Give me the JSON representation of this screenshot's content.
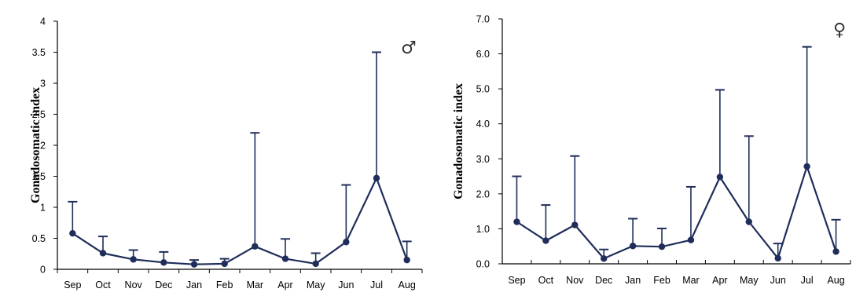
{
  "chart_data": [
    {
      "type": "line",
      "title": "",
      "symbol": "♂",
      "xlabel": "",
      "ylabel": "Gonadosomatic index",
      "categories": [
        "Sep",
        "Oct",
        "Nov",
        "Dec",
        "Jan",
        "Feb",
        "Mar",
        "Apr",
        "May",
        "Jun",
        "Jul",
        "Aug"
      ],
      "values": [
        0.58,
        0.26,
        0.16,
        0.11,
        0.08,
        0.09,
        0.37,
        0.17,
        0.09,
        0.44,
        1.47,
        0.15
      ],
      "error_upper": [
        1.09,
        0.53,
        0.31,
        0.28,
        0.15,
        0.17,
        2.2,
        0.49,
        0.26,
        1.36,
        3.5,
        0.45
      ],
      "ylim": [
        0,
        4
      ],
      "yticks": [
        "0",
        "0.5",
        "1",
        "1.5",
        "2",
        "2.5",
        "3",
        "3.5",
        "4"
      ],
      "grid": false,
      "color": "#1f2d5a"
    },
    {
      "type": "line",
      "title": "",
      "symbol": "♀",
      "xlabel": "",
      "ylabel": "Gonadosomatic index",
      "categories": [
        "Sep",
        "Oct",
        "Nov",
        "Dec",
        "Jan",
        "Feb",
        "Mar",
        "Apr",
        "May",
        "Jun",
        "Jul",
        "Aug"
      ],
      "values": [
        1.2,
        0.66,
        1.11,
        0.15,
        0.51,
        0.49,
        0.68,
        2.48,
        1.2,
        0.16,
        2.78,
        0.35
      ],
      "error_upper": [
        2.5,
        1.68,
        3.08,
        0.41,
        1.29,
        1.01,
        2.2,
        4.97,
        3.65,
        0.58,
        6.2,
        1.26
      ],
      "ylim": [
        0,
        7
      ],
      "yticks": [
        "0.0",
        "1.0",
        "2.0",
        "3.0",
        "4.0",
        "5.0",
        "6.0",
        "7.0"
      ],
      "grid": false,
      "color": "#1f2d5a"
    }
  ]
}
